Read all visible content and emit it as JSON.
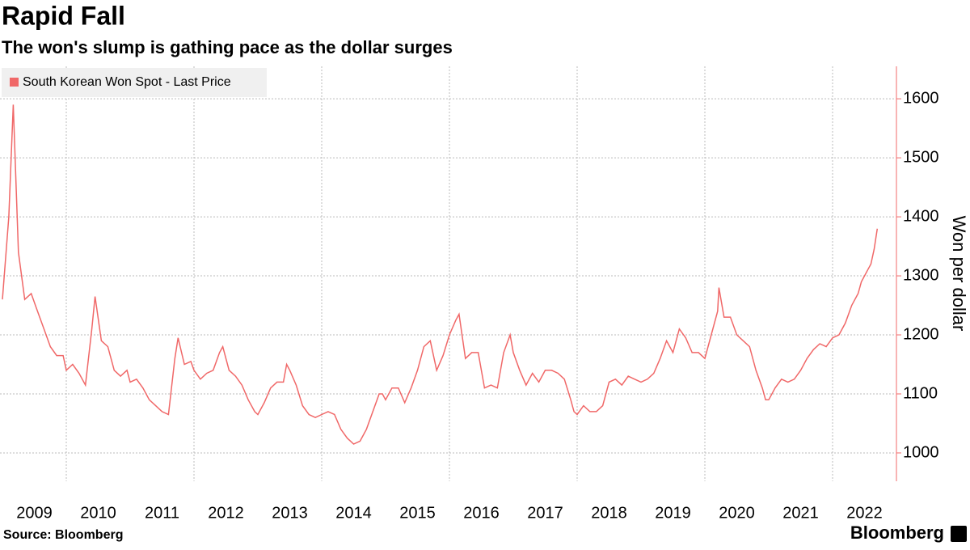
{
  "chart_data": {
    "type": "line",
    "title": "Rapid Fall",
    "subtitle": "The won's slump is gathing pace as the dollar surges",
    "source": "Source: Bloomberg",
    "brand": "Bloomberg",
    "y_label": "Won per dollar",
    "x": [
      2009.0,
      2009.1,
      2009.17,
      2009.25,
      2009.35,
      2009.45,
      2009.55,
      2009.65,
      2009.75,
      2009.85,
      2009.95,
      2010.0,
      2010.1,
      2010.2,
      2010.3,
      2010.4,
      2010.45,
      2010.55,
      2010.65,
      2010.75,
      2010.85,
      2010.95,
      2011.0,
      2011.1,
      2011.2,
      2011.3,
      2011.4,
      2011.5,
      2011.6,
      2011.7,
      2011.75,
      2011.85,
      2011.95,
      2012.0,
      2012.1,
      2012.2,
      2012.3,
      2012.4,
      2012.45,
      2012.55,
      2012.65,
      2012.75,
      2012.85,
      2012.95,
      2013.0,
      2013.1,
      2013.2,
      2013.3,
      2013.4,
      2013.45,
      2013.5,
      2013.6,
      2013.7,
      2013.8,
      2013.9,
      2014.0,
      2014.1,
      2014.2,
      2014.3,
      2014.4,
      2014.5,
      2014.6,
      2014.7,
      2014.8,
      2014.9,
      2014.95,
      2015.0,
      2015.1,
      2015.2,
      2015.3,
      2015.4,
      2015.5,
      2015.6,
      2015.7,
      2015.8,
      2015.9,
      2016.0,
      2016.1,
      2016.15,
      2016.25,
      2016.35,
      2016.45,
      2016.55,
      2016.65,
      2016.75,
      2016.85,
      2016.95,
      2017.0,
      2017.1,
      2017.2,
      2017.3,
      2017.4,
      2017.5,
      2017.6,
      2017.7,
      2017.8,
      2017.9,
      2017.95,
      2018.0,
      2018.1,
      2018.2,
      2018.3,
      2018.4,
      2018.5,
      2018.6,
      2018.7,
      2018.8,
      2018.9,
      2019.0,
      2019.1,
      2019.2,
      2019.3,
      2019.4,
      2019.5,
      2019.6,
      2019.7,
      2019.8,
      2019.9,
      2020.0,
      2020.1,
      2020.2,
      2020.22,
      2020.3,
      2020.4,
      2020.5,
      2020.6,
      2020.7,
      2020.8,
      2020.9,
      2020.95,
      2021.0,
      2021.1,
      2021.2,
      2021.3,
      2021.4,
      2021.5,
      2021.6,
      2021.7,
      2021.8,
      2021.9,
      2022.0,
      2022.1,
      2022.2,
      2022.3,
      2022.4,
      2022.45,
      2022.5,
      2022.55,
      2022.6,
      2022.65,
      2022.7
    ],
    "series": [
      {
        "name": "South Korean Won Spot - Last Price",
        "color": "#f06868",
        "values": [
          1260,
          1400,
          1590,
          1340,
          1260,
          1270,
          1240,
          1210,
          1180,
          1165,
          1165,
          1140,
          1150,
          1135,
          1115,
          1210,
          1265,
          1190,
          1180,
          1140,
          1130,
          1140,
          1120,
          1125,
          1110,
          1090,
          1080,
          1070,
          1065,
          1160,
          1195,
          1150,
          1155,
          1140,
          1125,
          1135,
          1140,
          1170,
          1180,
          1140,
          1130,
          1115,
          1090,
          1070,
          1065,
          1085,
          1110,
          1120,
          1120,
          1150,
          1140,
          1115,
          1080,
          1065,
          1060,
          1065,
          1070,
          1065,
          1040,
          1025,
          1015,
          1020,
          1040,
          1070,
          1100,
          1100,
          1090,
          1110,
          1110,
          1085,
          1110,
          1140,
          1180,
          1190,
          1140,
          1165,
          1200,
          1225,
          1235,
          1160,
          1170,
          1170,
          1110,
          1115,
          1110,
          1170,
          1200,
          1170,
          1140,
          1115,
          1135,
          1120,
          1140,
          1140,
          1135,
          1125,
          1090,
          1070,
          1065,
          1080,
          1070,
          1070,
          1080,
          1120,
          1125,
          1115,
          1130,
          1125,
          1120,
          1125,
          1135,
          1160,
          1190,
          1170,
          1210,
          1195,
          1170,
          1170,
          1160,
          1200,
          1240,
          1280,
          1230,
          1230,
          1200,
          1190,
          1180,
          1140,
          1110,
          1090,
          1090,
          1110,
          1125,
          1120,
          1125,
          1140,
          1160,
          1175,
          1185,
          1180,
          1195,
          1200,
          1220,
          1250,
          1270,
          1290,
          1300,
          1310,
          1320,
          1345,
          1380
        ]
      }
    ],
    "xlim": [
      2009,
      2023
    ],
    "xticks": [
      {
        "value": 2009.5,
        "label": "2009"
      },
      {
        "value": 2010.5,
        "label": "2010"
      },
      {
        "value": 2011.5,
        "label": "2011"
      },
      {
        "value": 2012.5,
        "label": "2012"
      },
      {
        "value": 2013.5,
        "label": "2013"
      },
      {
        "value": 2014.5,
        "label": "2014"
      },
      {
        "value": 2015.5,
        "label": "2015"
      },
      {
        "value": 2016.5,
        "label": "2016"
      },
      {
        "value": 2017.5,
        "label": "2017"
      },
      {
        "value": 2018.5,
        "label": "2018"
      },
      {
        "value": 2019.5,
        "label": "2019"
      },
      {
        "value": 2020.5,
        "label": "2020"
      },
      {
        "value": 2021.5,
        "label": "2021"
      },
      {
        "value": 2022.5,
        "label": "2022"
      }
    ],
    "xgrid": [
      2010,
      2012,
      2014,
      2016,
      2018,
      2020,
      2022
    ],
    "ylim": [
      952,
      1655
    ],
    "yticks": [
      1000,
      1100,
      1200,
      1300,
      1400,
      1500,
      1600
    ],
    "grid": true,
    "legend": "top-left"
  }
}
